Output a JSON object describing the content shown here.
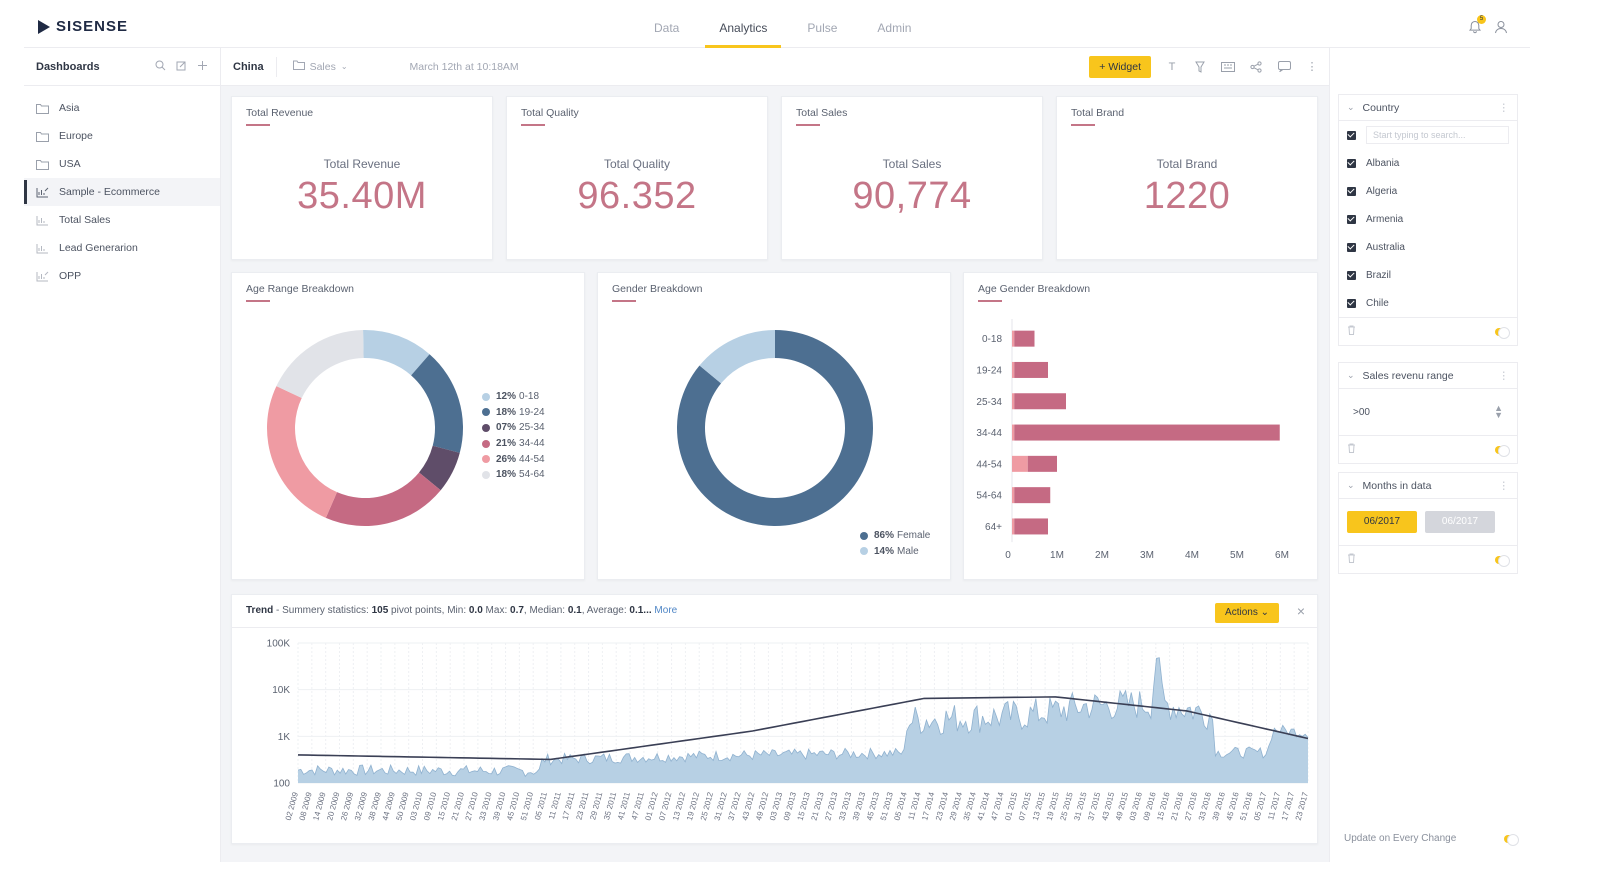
{
  "app": {
    "logo_text": "SISENSE"
  },
  "nav": {
    "tabs": [
      {
        "label": "Data",
        "active": false
      },
      {
        "label": "Analytics",
        "active": true
      },
      {
        "label": "Pulse",
        "active": false
      },
      {
        "label": "Admin",
        "active": false
      }
    ],
    "notification_count": "5"
  },
  "sidebar": {
    "title": "Dashboards",
    "items": [
      {
        "label": "Asia",
        "icon": "folder-icon"
      },
      {
        "label": "Europe",
        "icon": "folder-icon"
      },
      {
        "label": "USA",
        "icon": "folder-icon"
      },
      {
        "label": "Sample - Ecommerce",
        "icon": "dashboard-icon",
        "active": true
      },
      {
        "label": "Total Sales",
        "icon": "dashboard-icon"
      },
      {
        "label": "Lead Generarion",
        "icon": "dashboard-icon"
      },
      {
        "label": "OPP",
        "icon": "dashboard-icon"
      }
    ]
  },
  "toolbar": {
    "title": "China",
    "folder": "Sales",
    "date": "March 12th at 10:18AM",
    "widget_button": "+ Widget"
  },
  "kpis": [
    {
      "title": "Total Revenue",
      "label": "Total Revenue",
      "value": "35.40M"
    },
    {
      "title": "Total Quality",
      "label": "Total Quality",
      "value": "96.352"
    },
    {
      "title": "Total Sales",
      "label": "Total Sales",
      "value": "90,774"
    },
    {
      "title": "Total Brand",
      "label": "Total Brand",
      "value": "1220"
    }
  ],
  "colors": {
    "accent": "#f8c51c",
    "kpi": "#c47587",
    "link": "#4f86c6"
  },
  "chart_data": [
    {
      "type": "pie",
      "title": "Age Range Breakdown",
      "donut": true,
      "slices": [
        {
          "label": "0-18",
          "pct_label": "12%",
          "value": 12,
          "color": "#b7d0e4"
        },
        {
          "label": "19-24",
          "pct_label": "18%",
          "value": 18,
          "color": "#4d6f91"
        },
        {
          "label": "25-34",
          "pct_label": "07%",
          "value": 7,
          "color": "#5f4d69"
        },
        {
          "label": "34-44",
          "pct_label": "21%",
          "value": 21,
          "color": "#c56a83"
        },
        {
          "label": "44-54",
          "pct_label": "26%",
          "value": 26,
          "color": "#ef9ba3"
        },
        {
          "label": "54-64",
          "pct_label": "18%",
          "value": 18,
          "color": "#e1e3e8"
        }
      ]
    },
    {
      "type": "pie",
      "title": "Gender Breakdown",
      "donut": true,
      "slices": [
        {
          "label": "Female",
          "pct_label": "86%",
          "value": 86,
          "color": "#4d6f91"
        },
        {
          "label": "Male",
          "pct_label": "14%",
          "value": 14,
          "color": "#b7d0e4"
        }
      ]
    },
    {
      "type": "bar",
      "orientation": "horizontal",
      "title": "Age Gender Breakdown",
      "categories": [
        "0-18",
        "19-24",
        "25-34",
        "34-44",
        "44-54",
        "54-64",
        "64+"
      ],
      "series": [
        {
          "values": [
            0.05,
            0.05,
            0.05,
            0.05,
            0.35,
            0.05,
            0.05
          ],
          "color": "#ef9ba3"
        },
        {
          "values": [
            0.45,
            0.75,
            1.15,
            5.9,
            0.65,
            0.8,
            0.75
          ],
          "color": "#c56a83"
        }
      ],
      "xticks": [
        "0",
        "1M",
        "2M",
        "3M",
        "4M",
        "5M",
        "6M"
      ],
      "xlim": [
        0,
        6
      ]
    },
    {
      "type": "area",
      "title": "Trend",
      "yscale": "log",
      "ylim": [
        100,
        100000
      ],
      "yticks": [
        "100K",
        "10K",
        "1K",
        "100"
      ],
      "xticks": [
        "02 2009",
        "08 2009",
        "14 2009",
        "20 2009",
        "26 2009",
        "32 2009",
        "38 2009",
        "44 2009",
        "50 2009",
        "03 2010",
        "09 2010",
        "15 2010",
        "21 2010",
        "27 2010",
        "33 2010",
        "39 2010",
        "45 2010",
        "51 2010",
        "05 2011",
        "11 2011",
        "17 2011",
        "23 2011",
        "29 2011",
        "35 2011",
        "41 2011",
        "47 2011",
        "01 2012",
        "07 2012",
        "13 2012",
        "19 2012",
        "25 2012",
        "31 2012",
        "37 2012",
        "43 2012",
        "49 2012",
        "03 2013",
        "09 2013",
        "15 2013",
        "21 2013",
        "27 2013",
        "33 2013",
        "39 2013",
        "45 2013",
        "51 2013",
        "05 2014",
        "11 2014",
        "17 2014",
        "23 2014",
        "29 2014",
        "35 2014",
        "41 2014",
        "47 2014",
        "01 2015",
        "07 2015",
        "13 2015",
        "19 2015",
        "25 2015",
        "31 2015",
        "37 2015",
        "43 2015",
        "49 2015",
        "03 2016",
        "09 2016",
        "15 2016",
        "21 2016",
        "27 2016",
        "33 2016",
        "39 2016",
        "45 2016",
        "51 2016",
        "05 2017",
        "11 2017",
        "17 2017",
        "23 2017"
      ],
      "anchors": [
        {
          "x": 0,
          "y": 190
        },
        {
          "x": 0.24,
          "y": 180
        },
        {
          "x": 0.242,
          "y": 320
        },
        {
          "x": 0.4,
          "y": 380
        },
        {
          "x": 0.6,
          "y": 440
        },
        {
          "x": 0.602,
          "y": 2200
        },
        {
          "x": 0.72,
          "y": 2800
        },
        {
          "x": 0.78,
          "y": 4500
        },
        {
          "x": 0.845,
          "y": 5000
        },
        {
          "x": 0.85,
          "y": 60000
        },
        {
          "x": 0.857,
          "y": 5000
        },
        {
          "x": 0.905,
          "y": 3000
        },
        {
          "x": 0.91,
          "y": 450
        },
        {
          "x": 0.96,
          "y": 450
        },
        {
          "x": 0.965,
          "y": 1400
        },
        {
          "x": 1,
          "y": 1200
        }
      ],
      "trendline": [
        {
          "x": 0,
          "y": 400
        },
        {
          "x": 0.25,
          "y": 320
        },
        {
          "x": 0.45,
          "y": 1300
        },
        {
          "x": 0.62,
          "y": 6500
        },
        {
          "x": 0.75,
          "y": 7000
        },
        {
          "x": 0.88,
          "y": 3500
        },
        {
          "x": 1,
          "y": 900
        }
      ]
    }
  ],
  "trend": {
    "title": "Trend",
    "summary_prefix": " - Summery statistics: ",
    "pivot_points": "105",
    "pivot_label": " pivot points, Min: ",
    "min": "0.0",
    "max_label": " Max: ",
    "max": "0.7",
    "median_label": ", Median: ",
    "median": "0.1",
    "average_label": ", Average: ",
    "average": "0.1...",
    "more": "More",
    "actions_button": "Actions"
  },
  "filters": {
    "country": {
      "title": "Country",
      "search_placeholder": "Start typing to search...",
      "items": [
        "Albania",
        "Algeria",
        "Armenia",
        "Australia",
        "Brazil",
        "Chile"
      ]
    },
    "sales_range": {
      "title": "Sales revenu range",
      "value": ">00"
    },
    "months": {
      "title": "Months in data",
      "from": "06/2017",
      "to": "06/2017"
    },
    "update_label": "Update on Every Change"
  }
}
